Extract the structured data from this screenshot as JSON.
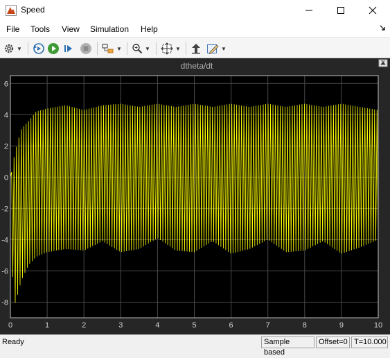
{
  "window": {
    "title": "Speed"
  },
  "menu": [
    "File",
    "Tools",
    "View",
    "Simulation",
    "Help"
  ],
  "toolbar": {
    "icons": [
      "settings-icon",
      "step-back-icon",
      "run-icon",
      "step-forward-icon",
      "stop-icon",
      "highlight-icon",
      "zoom-icon",
      "autoscale-icon",
      "write-to-workspace-icon",
      "style-icon"
    ]
  },
  "scope": {
    "title": "dtheta/dt",
    "background": "#000000",
    "frame": "#262626",
    "trace_color": "#ffff00"
  },
  "chart_data": {
    "type": "line",
    "title": "dtheta/dt",
    "xlabel": "",
    "ylabel": "",
    "xlim": [
      0,
      10
    ],
    "ylim": [
      -9,
      6.5
    ],
    "x_ticks": [
      "0",
      "1",
      "2",
      "3",
      "4",
      "5",
      "6",
      "7",
      "8",
      "9",
      "10"
    ],
    "y_ticks": [
      "6",
      "4",
      "2",
      "0",
      "-2",
      "-4",
      "-6",
      "-8"
    ],
    "grid": true,
    "series": [
      {
        "color": "#ffff00",
        "cycles": 152,
        "envelope_x": [
          0,
          0.05,
          0.1,
          0.2,
          0.3,
          0.5,
          0.7,
          1.0,
          1.5,
          2.0,
          2.5,
          3.0,
          3.5,
          4.0,
          4.5,
          5.0,
          5.5,
          6.0,
          6.5,
          7.0,
          7.5,
          8.0,
          8.5,
          9.0,
          9.5,
          10.0
        ],
        "envelope_upper": [
          0,
          0.5,
          1.3,
          2.3,
          3.1,
          3.6,
          4.2,
          4.4,
          4.6,
          4.3,
          4.6,
          4.7,
          4.5,
          4.7,
          4.5,
          4.7,
          4.5,
          4.7,
          4.5,
          4.7,
          4.5,
          4.7,
          4.5,
          4.7,
          4.5,
          4.3
        ],
        "envelope_lower": [
          0,
          -5.5,
          -8.3,
          -7.5,
          -6.6,
          -5.6,
          -5.1,
          -4.8,
          -4.6,
          -4.7,
          -4.1,
          -4.8,
          -4.6,
          -3.9,
          -4.7,
          -4.8,
          -4.1,
          -4.9,
          -4.6,
          -4.0,
          -4.8,
          -4.7,
          -4.1,
          -4.9,
          -4.5,
          -4.0
        ]
      }
    ]
  },
  "status": {
    "left": "Ready",
    "sample": "Sample based",
    "offset": "Offset=0",
    "time": "T=10.000"
  }
}
